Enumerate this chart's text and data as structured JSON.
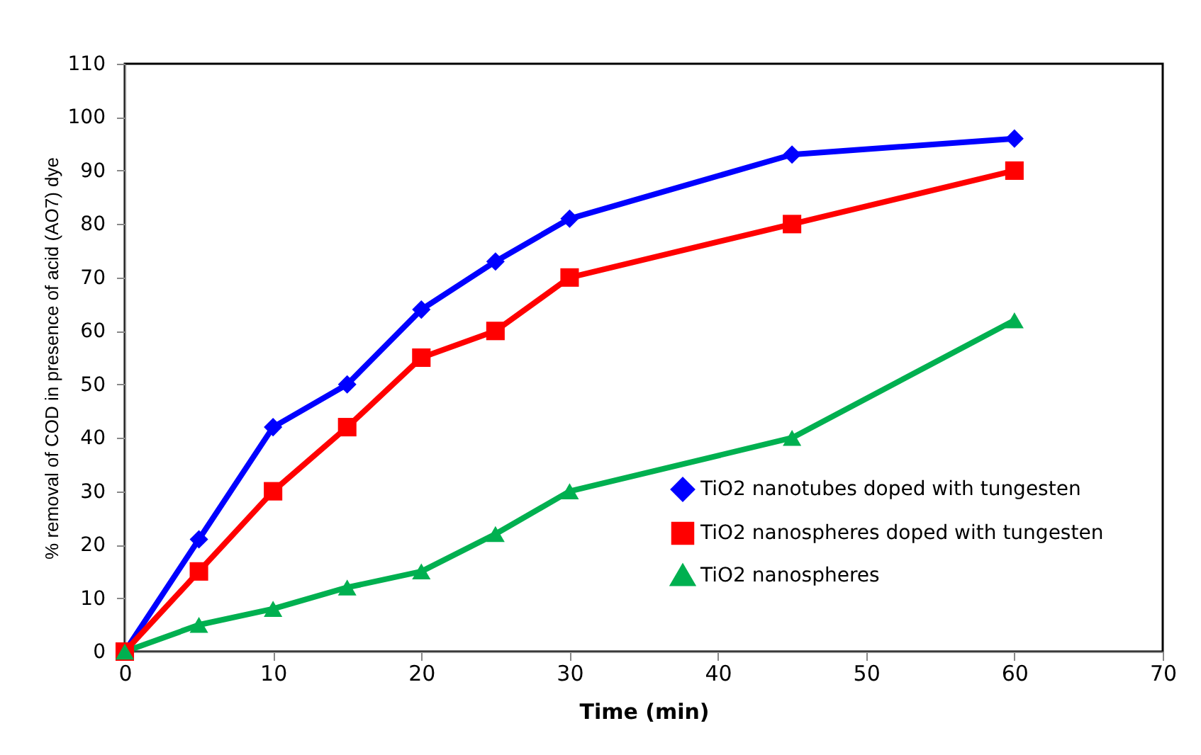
{
  "chart_data": {
    "type": "line",
    "xlabel": "Time (min)",
    "ylabel": "% removal of COD in presence of  acid (AO7) dye",
    "x": [
      0,
      5,
      10,
      15,
      20,
      25,
      30,
      45,
      60
    ],
    "series": [
      {
        "name": "TiO2  nanotubes doped with tungesten",
        "color": "#0000ff",
        "marker": "diamond",
        "values": [
          0,
          21,
          42,
          50,
          64,
          73,
          81,
          93,
          96
        ]
      },
      {
        "name": "TiO2 nanospheres doped with tungesten",
        "color": "#ff0000",
        "marker": "square",
        "values": [
          0,
          15,
          30,
          42,
          55,
          60,
          70,
          80,
          90
        ]
      },
      {
        "name": "TiO2 nanospheres",
        "color": "#00b050",
        "marker": "triangle",
        "values": [
          0,
          5,
          8,
          12,
          15,
          22,
          30,
          40,
          62
        ]
      }
    ],
    "xlim": [
      0,
      70
    ],
    "xticks": [
      0,
      10,
      20,
      30,
      40,
      50,
      60,
      70
    ],
    "ylim": [
      0,
      110
    ],
    "yticks": [
      0,
      10,
      20,
      30,
      40,
      50,
      60,
      70,
      80,
      90,
      100,
      110
    ],
    "grid": false,
    "legend": "bottom right",
    "line_style": "solid"
  }
}
